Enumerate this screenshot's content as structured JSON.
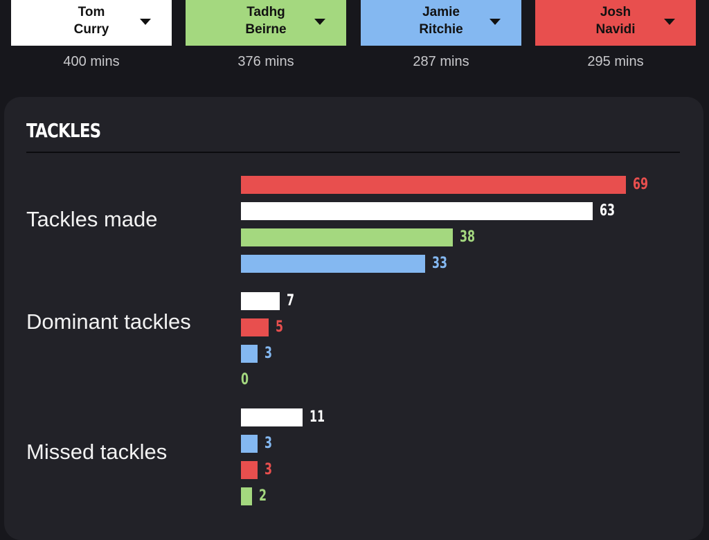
{
  "colors": {
    "white": "#ffffff",
    "green": "#a4d87f",
    "blue": "#84b8f1",
    "red": "#e84f4e"
  },
  "players": [
    {
      "first": "Tom",
      "last": "Curry",
      "mins": "400 mins",
      "color": "#ffffff",
      "icon": "caret-down-icon"
    },
    {
      "first": "Tadhg",
      "last": "Beirne",
      "mins": "376 mins",
      "color": "#a4d87f",
      "icon": "caret-down-icon"
    },
    {
      "first": "Jamie",
      "last": "Ritchie",
      "mins": "287 mins",
      "color": "#84b8f1",
      "icon": "caret-down-icon"
    },
    {
      "first": "Josh",
      "last": "Navidi",
      "mins": "295 mins",
      "color": "#e84f4e",
      "icon": "caret-down-icon"
    }
  ],
  "section": {
    "title": "TACKLES"
  },
  "stats": [
    {
      "label": "Tackles made",
      "bars": [
        {
          "player": "Josh Navidi",
          "value": 69,
          "color": "#e84f4e"
        },
        {
          "player": "Tom Curry",
          "value": 63,
          "color": "#ffffff"
        },
        {
          "player": "Tadhg Beirne",
          "value": 38,
          "color": "#a4d87f"
        },
        {
          "player": "Jamie Ritchie",
          "value": 33,
          "color": "#84b8f1"
        }
      ]
    },
    {
      "label": "Dominant tackles",
      "bars": [
        {
          "player": "Tom Curry",
          "value": 7,
          "color": "#ffffff"
        },
        {
          "player": "Josh Navidi",
          "value": 5,
          "color": "#e84f4e"
        },
        {
          "player": "Jamie Ritchie",
          "value": 3,
          "color": "#84b8f1"
        },
        {
          "player": "Tadhg Beirne",
          "value": 0,
          "color": "#a4d87f"
        }
      ]
    },
    {
      "label": "Missed tackles",
      "bars": [
        {
          "player": "Tom Curry",
          "value": 11,
          "color": "#ffffff"
        },
        {
          "player": "Jamie Ritchie",
          "value": 3,
          "color": "#84b8f1"
        },
        {
          "player": "Josh Navidi",
          "value": 3,
          "color": "#e84f4e"
        },
        {
          "player": "Tadhg Beirne",
          "value": 2,
          "color": "#a4d87f"
        }
      ]
    }
  ]
}
